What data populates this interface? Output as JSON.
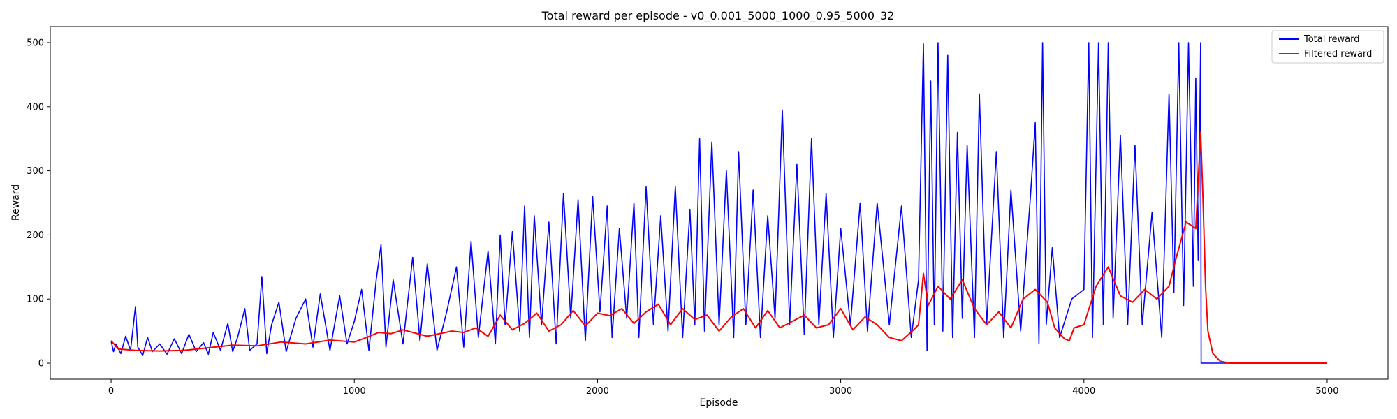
{
  "chart_data": {
    "type": "line",
    "title": "Total reward per episode - v0_0.001_5000_1000_0.95_5000_32",
    "xlabel": "Episode",
    "ylabel": "Reward",
    "xlim": [
      -250,
      5250
    ],
    "ylim": [
      -25,
      525
    ],
    "xticks": [
      0,
      1000,
      2000,
      3000,
      4000,
      5000
    ],
    "yticks": [
      0,
      100,
      200,
      300,
      400,
      500
    ],
    "grid": false,
    "legend_position": "top-right",
    "series": [
      {
        "name": "Total reward",
        "color": "#0000ff",
        "points": [
          [
            0,
            35
          ],
          [
            10,
            18
          ],
          [
            20,
            30
          ],
          [
            40,
            15
          ],
          [
            60,
            42
          ],
          [
            80,
            20
          ],
          [
            100,
            88
          ],
          [
            110,
            25
          ],
          [
            130,
            12
          ],
          [
            150,
            40
          ],
          [
            170,
            18
          ],
          [
            200,
            30
          ],
          [
            230,
            14
          ],
          [
            260,
            38
          ],
          [
            290,
            15
          ],
          [
            320,
            45
          ],
          [
            350,
            18
          ],
          [
            380,
            32
          ],
          [
            400,
            14
          ],
          [
            420,
            48
          ],
          [
            450,
            20
          ],
          [
            480,
            62
          ],
          [
            500,
            18
          ],
          [
            520,
            40
          ],
          [
            550,
            85
          ],
          [
            570,
            20
          ],
          [
            600,
            30
          ],
          [
            620,
            135
          ],
          [
            640,
            15
          ],
          [
            660,
            60
          ],
          [
            690,
            95
          ],
          [
            720,
            18
          ],
          [
            760,
            70
          ],
          [
            800,
            100
          ],
          [
            830,
            25
          ],
          [
            860,
            108
          ],
          [
            900,
            20
          ],
          [
            940,
            105
          ],
          [
            970,
            30
          ],
          [
            1000,
            65
          ],
          [
            1030,
            115
          ],
          [
            1060,
            20
          ],
          [
            1090,
            130
          ],
          [
            1110,
            185
          ],
          [
            1130,
            25
          ],
          [
            1160,
            130
          ],
          [
            1200,
            30
          ],
          [
            1240,
            165
          ],
          [
            1270,
            35
          ],
          [
            1300,
            155
          ],
          [
            1340,
            20
          ],
          [
            1380,
            80
          ],
          [
            1420,
            150
          ],
          [
            1450,
            25
          ],
          [
            1480,
            190
          ],
          [
            1510,
            40
          ],
          [
            1550,
            175
          ],
          [
            1580,
            30
          ],
          [
            1600,
            200
          ],
          [
            1620,
            60
          ],
          [
            1650,
            205
          ],
          [
            1680,
            50
          ],
          [
            1700,
            245
          ],
          [
            1720,
            40
          ],
          [
            1740,
            230
          ],
          [
            1770,
            60
          ],
          [
            1800,
            220
          ],
          [
            1830,
            30
          ],
          [
            1860,
            265
          ],
          [
            1890,
            70
          ],
          [
            1920,
            255
          ],
          [
            1950,
            35
          ],
          [
            1980,
            260
          ],
          [
            2010,
            80
          ],
          [
            2040,
            245
          ],
          [
            2060,
            40
          ],
          [
            2090,
            210
          ],
          [
            2120,
            70
          ],
          [
            2150,
            250
          ],
          [
            2170,
            40
          ],
          [
            2200,
            275
          ],
          [
            2230,
            60
          ],
          [
            2260,
            230
          ],
          [
            2290,
            50
          ],
          [
            2320,
            275
          ],
          [
            2350,
            40
          ],
          [
            2380,
            240
          ],
          [
            2400,
            60
          ],
          [
            2420,
            350
          ],
          [
            2440,
            50
          ],
          [
            2470,
            345
          ],
          [
            2500,
            60
          ],
          [
            2530,
            300
          ],
          [
            2560,
            40
          ],
          [
            2580,
            330
          ],
          [
            2610,
            60
          ],
          [
            2640,
            270
          ],
          [
            2670,
            40
          ],
          [
            2700,
            230
          ],
          [
            2730,
            70
          ],
          [
            2760,
            395
          ],
          [
            2790,
            60
          ],
          [
            2820,
            310
          ],
          [
            2850,
            45
          ],
          [
            2880,
            350
          ],
          [
            2910,
            60
          ],
          [
            2940,
            265
          ],
          [
            2970,
            40
          ],
          [
            3000,
            210
          ],
          [
            3040,
            60
          ],
          [
            3080,
            250
          ],
          [
            3110,
            50
          ],
          [
            3150,
            250
          ],
          [
            3200,
            60
          ],
          [
            3250,
            245
          ],
          [
            3290,
            40
          ],
          [
            3320,
            130
          ],
          [
            3340,
            498
          ],
          [
            3355,
            20
          ],
          [
            3370,
            440
          ],
          [
            3385,
            60
          ],
          [
            3400,
            500
          ],
          [
            3420,
            50
          ],
          [
            3440,
            480
          ],
          [
            3460,
            40
          ],
          [
            3480,
            360
          ],
          [
            3500,
            70
          ],
          [
            3520,
            340
          ],
          [
            3550,
            40
          ],
          [
            3570,
            420
          ],
          [
            3600,
            60
          ],
          [
            3640,
            330
          ],
          [
            3670,
            40
          ],
          [
            3700,
            270
          ],
          [
            3740,
            50
          ],
          [
            3780,
            260
          ],
          [
            3800,
            375
          ],
          [
            3815,
            30
          ],
          [
            3830,
            500
          ],
          [
            3845,
            60
          ],
          [
            3870,
            180
          ],
          [
            3900,
            40
          ],
          [
            3950,
            100
          ],
          [
            4000,
            115
          ],
          [
            4020,
            500
          ],
          [
            4035,
            40
          ],
          [
            4060,
            500
          ],
          [
            4080,
            60
          ],
          [
            4100,
            500
          ],
          [
            4120,
            70
          ],
          [
            4150,
            355
          ],
          [
            4180,
            60
          ],
          [
            4210,
            340
          ],
          [
            4240,
            60
          ],
          [
            4280,
            235
          ],
          [
            4320,
            40
          ],
          [
            4350,
            420
          ],
          [
            4370,
            110
          ],
          [
            4390,
            500
          ],
          [
            4410,
            90
          ],
          [
            4430,
            500
          ],
          [
            4450,
            120
          ],
          [
            4460,
            445
          ],
          [
            4470,
            160
          ],
          [
            4480,
            500
          ],
          [
            4482,
            0
          ],
          [
            5000,
            0
          ]
        ]
      },
      {
        "name": "Filtered reward",
        "color": "#ff0000",
        "points": [
          [
            0,
            35
          ],
          [
            30,
            22
          ],
          [
            100,
            20
          ],
          [
            200,
            19
          ],
          [
            300,
            20
          ],
          [
            400,
            24
          ],
          [
            500,
            28
          ],
          [
            600,
            27
          ],
          [
            700,
            33
          ],
          [
            800,
            30
          ],
          [
            900,
            36
          ],
          [
            1000,
            33
          ],
          [
            1050,
            40
          ],
          [
            1100,
            48
          ],
          [
            1150,
            46
          ],
          [
            1200,
            52
          ],
          [
            1300,
            42
          ],
          [
            1400,
            50
          ],
          [
            1450,
            48
          ],
          [
            1500,
            55
          ],
          [
            1550,
            42
          ],
          [
            1600,
            75
          ],
          [
            1650,
            52
          ],
          [
            1700,
            62
          ],
          [
            1750,
            78
          ],
          [
            1800,
            50
          ],
          [
            1850,
            60
          ],
          [
            1900,
            82
          ],
          [
            1950,
            58
          ],
          [
            2000,
            78
          ],
          [
            2050,
            74
          ],
          [
            2100,
            85
          ],
          [
            2150,
            62
          ],
          [
            2200,
            80
          ],
          [
            2250,
            92
          ],
          [
            2300,
            60
          ],
          [
            2350,
            85
          ],
          [
            2400,
            68
          ],
          [
            2450,
            75
          ],
          [
            2500,
            50
          ],
          [
            2550,
            72
          ],
          [
            2600,
            85
          ],
          [
            2650,
            55
          ],
          [
            2700,
            82
          ],
          [
            2750,
            55
          ],
          [
            2800,
            65
          ],
          [
            2850,
            75
          ],
          [
            2900,
            55
          ],
          [
            2950,
            60
          ],
          [
            3000,
            85
          ],
          [
            3050,
            52
          ],
          [
            3100,
            72
          ],
          [
            3150,
            60
          ],
          [
            3200,
            40
          ],
          [
            3250,
            35
          ],
          [
            3300,
            52
          ],
          [
            3320,
            60
          ],
          [
            3340,
            140
          ],
          [
            3360,
            90
          ],
          [
            3400,
            120
          ],
          [
            3450,
            100
          ],
          [
            3500,
            130
          ],
          [
            3550,
            85
          ],
          [
            3600,
            60
          ],
          [
            3650,
            80
          ],
          [
            3700,
            55
          ],
          [
            3750,
            100
          ],
          [
            3800,
            115
          ],
          [
            3850,
            95
          ],
          [
            3880,
            55
          ],
          [
            3920,
            38
          ],
          [
            3940,
            35
          ],
          [
            3960,
            55
          ],
          [
            4000,
            60
          ],
          [
            4050,
            120
          ],
          [
            4100,
            150
          ],
          [
            4150,
            105
          ],
          [
            4200,
            95
          ],
          [
            4250,
            115
          ],
          [
            4300,
            100
          ],
          [
            4350,
            120
          ],
          [
            4380,
            165
          ],
          [
            4420,
            220
          ],
          [
            4460,
            210
          ],
          [
            4480,
            360
          ],
          [
            4490,
            250
          ],
          [
            4500,
            120
          ],
          [
            4510,
            50
          ],
          [
            4530,
            15
          ],
          [
            4560,
            3
          ],
          [
            4600,
            0
          ],
          [
            5000,
            0
          ]
        ]
      }
    ]
  }
}
